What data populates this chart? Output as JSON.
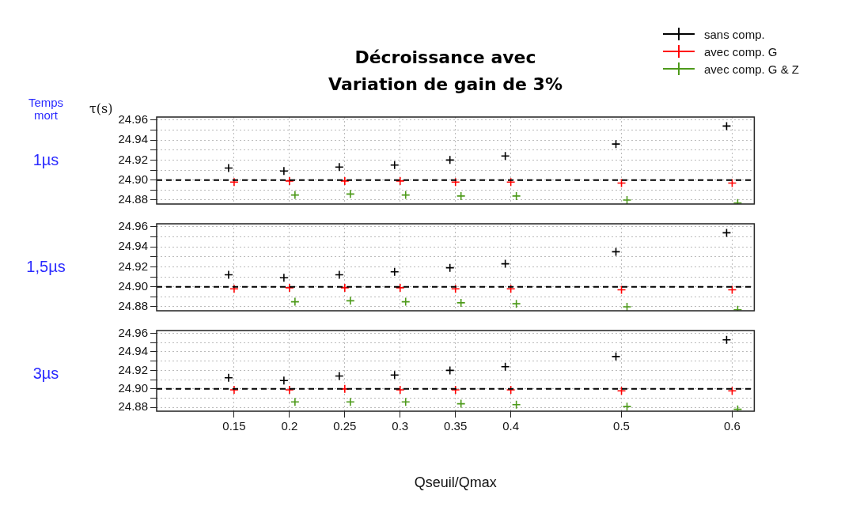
{
  "chart_data": [
    {
      "type": "scatter",
      "title": "Décroissance avec Variation de gain de 3%",
      "ylabel": "τ(s)",
      "annotations": [
        "Temps mort",
        "1µs"
      ],
      "legend": "top right",
      "marker": "cross",
      "grid": true,
      "tick_labels": "y",
      "xlim": [
        0.08,
        0.62
      ],
      "xticks": [
        0.15,
        0.2,
        0.25,
        0.3,
        0.35,
        0.4,
        0.5,
        0.6
      ],
      "ylim": [
        24.876,
        24.963
      ],
      "yticks": [
        24.88,
        {
          "value": 24.89,
          "label": null
        },
        {
          "value": 24.9,
          "label": "24.90"
        },
        {
          "value": 24.91,
          "label": null
        },
        24.92,
        {
          "value": 24.93,
          "label": null
        },
        24.94,
        {
          "value": 24.95,
          "label": null
        },
        24.96
      ],
      "ref_lines": [
        {
          "axis": "y",
          "value": 24.9,
          "color": "#000000",
          "line_style": "dashed"
        }
      ],
      "series": [
        {
          "name": "sans comp.",
          "color": "#000000",
          "x": [
            0.145,
            0.195,
            0.245,
            0.295,
            0.345,
            0.395,
            0.495,
            0.595
          ],
          "values": [
            24.912,
            24.909,
            24.913,
            24.915,
            24.92,
            24.924,
            24.936,
            24.954
          ]
        },
        {
          "name": "avec comp. G",
          "color": "#ff0000",
          "x": [
            0.15,
            0.2,
            0.25,
            0.3,
            0.35,
            0.4,
            0.5,
            0.6
          ],
          "values": [
            24.898,
            24.899,
            24.899,
            24.899,
            24.898,
            24.898,
            24.897,
            24.897
          ]
        },
        {
          "name": "avec comp. G & Z",
          "color": "#4d9a1a",
          "x": [
            0.205,
            0.255,
            0.305,
            0.355,
            0.405,
            0.505,
            0.605
          ],
          "values": [
            24.885,
            24.886,
            24.885,
            24.884,
            24.884,
            24.88,
            24.877
          ]
        }
      ]
    },
    {
      "type": "scatter",
      "annotations": [
        "1,5µs"
      ],
      "marker": "cross",
      "grid": true,
      "tick_labels": "y",
      "xlim": [
        0.08,
        0.62
      ],
      "xticks": [
        0.15,
        0.2,
        0.25,
        0.3,
        0.35,
        0.4,
        0.5,
        0.6
      ],
      "ylim": [
        24.876,
        24.963
      ],
      "yticks": [
        24.88,
        {
          "value": 24.89,
          "label": null
        },
        {
          "value": 24.9,
          "label": "24.90"
        },
        {
          "value": 24.91,
          "label": null
        },
        24.92,
        {
          "value": 24.93,
          "label": null
        },
        24.94,
        {
          "value": 24.95,
          "label": null
        },
        24.96
      ],
      "ref_lines": [
        {
          "axis": "y",
          "value": 24.9,
          "color": "#000000",
          "line_style": "dashed"
        }
      ],
      "series": [
        {
          "color": "#000000",
          "x": [
            0.145,
            0.195,
            0.245,
            0.295,
            0.345,
            0.395,
            0.495,
            0.595
          ],
          "values": [
            24.912,
            24.909,
            24.912,
            24.915,
            24.919,
            24.923,
            24.935,
            24.954
          ]
        },
        {
          "color": "#ff0000",
          "x": [
            0.15,
            0.2,
            0.25,
            0.3,
            0.35,
            0.4,
            0.5,
            0.6
          ],
          "values": [
            24.898,
            24.899,
            24.899,
            24.899,
            24.898,
            24.898,
            24.897,
            24.897
          ]
        },
        {
          "color": "#4d9a1a",
          "x": [
            0.205,
            0.255,
            0.305,
            0.355,
            0.405,
            0.505,
            0.605
          ],
          "values": [
            24.885,
            24.886,
            24.885,
            24.884,
            24.883,
            24.88,
            24.877
          ]
        }
      ]
    },
    {
      "type": "scatter",
      "xlabel": "Qseuil/Qmax",
      "annotations": [
        "3µs"
      ],
      "marker": "cross",
      "grid": true,
      "xlim": [
        0.08,
        0.62
      ],
      "xticks": [
        0.15,
        0.2,
        0.25,
        0.3,
        0.35,
        0.4,
        0.5,
        0.6
      ],
      "ylim": [
        24.876,
        24.963
      ],
      "yticks": [
        24.88,
        {
          "value": 24.89,
          "label": null
        },
        {
          "value": 24.9,
          "label": "24.90"
        },
        {
          "value": 24.91,
          "label": null
        },
        24.92,
        {
          "value": 24.93,
          "label": null
        },
        24.94,
        {
          "value": 24.95,
          "label": null
        },
        24.96
      ],
      "ref_lines": [
        {
          "axis": "y",
          "value": 24.9,
          "color": "#000000",
          "line_style": "dashed"
        }
      ],
      "series": [
        {
          "color": "#000000",
          "x": [
            0.145,
            0.195,
            0.245,
            0.295,
            0.345,
            0.395,
            0.495,
            0.595
          ],
          "values": [
            24.912,
            24.909,
            24.914,
            24.915,
            24.92,
            24.924,
            24.935,
            24.953
          ]
        },
        {
          "color": "#ff0000",
          "x": [
            0.15,
            0.2,
            0.25,
            0.3,
            0.35,
            0.4,
            0.5,
            0.6
          ],
          "values": [
            24.899,
            24.899,
            24.9,
            24.899,
            24.899,
            24.899,
            24.898,
            24.898
          ]
        },
        {
          "color": "#4d9a1a",
          "x": [
            0.205,
            0.255,
            0.305,
            0.355,
            0.405,
            0.505,
            0.605
          ],
          "values": [
            24.886,
            24.886,
            24.886,
            24.884,
            24.883,
            24.881,
            24.878
          ]
        }
      ]
    }
  ]
}
